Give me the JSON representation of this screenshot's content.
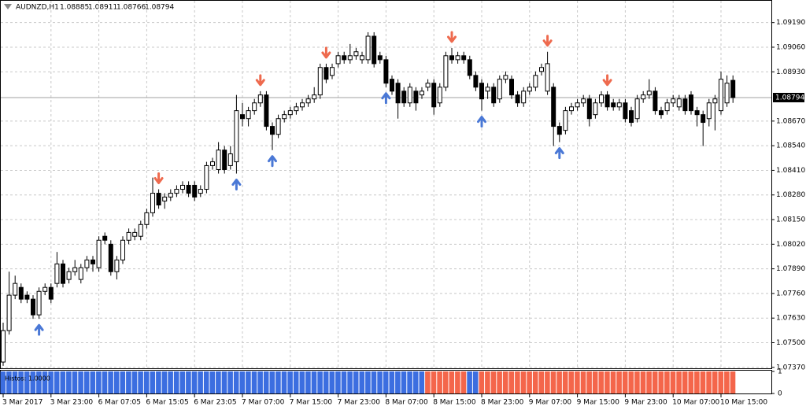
{
  "chart_data": {
    "type": "candlestick",
    "symbol": "AUDNZD,H1",
    "open": [
      1.07398,
      1.07564,
      1.07751,
      1.07792,
      1.07751,
      1.0773,
      1.07647,
      1.07771,
      1.07792,
      1.07813,
      1.07916,
      1.07834,
      1.07875,
      1.07834,
      1.07896,
      1.07937,
      1.07896,
      1.08062,
      1.0802,
      1.07875,
      1.07937,
      1.08041,
      1.08062,
      1.08062,
      1.08124,
      1.08186,
      1.08289,
      1.08248,
      1.08269,
      1.08289,
      1.0831,
      1.08331,
      1.08331,
      1.08289,
      1.0831,
      1.08435,
      1.08414,
      1.08517,
      1.08435,
      1.08455,
      1.08704,
      1.08683,
      1.08725,
      1.08766,
      1.08808,
      1.08642,
      1.086,
      1.08683,
      1.08704,
      1.08725,
      1.08745,
      1.08766,
      1.08787,
      1.08808,
      1.08953,
      1.08911,
      1.08973,
      1.09015,
      1.08994,
      1.09015,
      1.08994,
      1.08994,
      1.09118,
      1.09015,
      1.08994,
      1.08891,
      1.0887,
      1.08828,
      1.08766,
      1.08828,
      1.08808,
      1.08849,
      1.0887,
      1.08766,
      1.08849,
      1.09015,
      1.08994,
      1.09015,
      1.08994,
      1.08911,
      1.0887,
      1.08828,
      1.08849,
      1.08787,
      1.08891,
      1.08891,
      1.08808,
      1.08766,
      1.08828,
      1.08849,
      1.08932,
      1.08828,
      1.08849,
      1.08642,
      1.08621,
      1.08725,
      1.08745,
      1.08766,
      1.08787,
      1.08704,
      1.08766,
      1.08808,
      1.08766,
      1.08745,
      1.08766,
      1.08725,
      1.08683,
      1.08787,
      1.08808,
      1.08828,
      1.08725,
      1.08725,
      1.08766,
      1.08745,
      1.08787,
      1.08808,
      1.08725,
      1.08704,
      1.08683,
      1.08766,
      1.08725,
      1.08766,
      1.08885
    ],
    "high": [
      1.07606,
      1.07875,
      1.07854,
      1.07813,
      1.07771,
      1.07751,
      1.07792,
      1.07813,
      1.07813,
      1.07979,
      1.07937,
      1.07896,
      1.07937,
      1.07916,
      1.07958,
      1.07958,
      1.08062,
      1.08082,
      1.08041,
      1.07958,
      1.08062,
      1.08103,
      1.08103,
      1.08144,
      1.08207,
      1.08372,
      1.0831,
      1.08289,
      1.0831,
      1.08331,
      1.08352,
      1.08352,
      1.08352,
      1.08331,
      1.08455,
      1.08476,
      1.08559,
      1.08538,
      1.08538,
      1.08808,
      1.08766,
      1.08745,
      1.08787,
      1.08828,
      1.08828,
      1.08663,
      1.08704,
      1.08725,
      1.08745,
      1.08766,
      1.08787,
      1.08808,
      1.08849,
      1.08973,
      1.08973,
      1.08973,
      1.09036,
      1.09036,
      1.09077,
      1.09056,
      1.09036,
      1.09139,
      1.09139,
      1.09036,
      1.09015,
      1.08911,
      1.08891,
      1.08849,
      1.0887,
      1.08849,
      1.08849,
      1.08891,
      1.08891,
      1.0887,
      1.09036,
      1.09056,
      1.09036,
      1.09036,
      1.09015,
      1.08932,
      1.08891,
      1.0887,
      1.0887,
      1.08911,
      1.08932,
      1.08911,
      1.08828,
      1.08849,
      1.0887,
      1.08932,
      1.08973,
      1.09036,
      1.0887,
      1.08663,
      1.08745,
      1.08766,
      1.08787,
      1.08808,
      1.08808,
      1.08787,
      1.08828,
      1.08828,
      1.08787,
      1.08787,
      1.08787,
      1.08745,
      1.08808,
      1.08828,
      1.08891,
      1.08849,
      1.08745,
      1.08787,
      1.08808,
      1.08808,
      1.08808,
      1.08828,
      1.08745,
      1.08725,
      1.08787,
      1.08808,
      1.08932,
      1.08911,
      1.08911
    ],
    "low": [
      1.07378,
      1.07543,
      1.0773,
      1.07709,
      1.07709,
      1.07626,
      1.07626,
      1.07751,
      1.07709,
      1.07792,
      1.07792,
      1.07813,
      1.07854,
      1.07813,
      1.07875,
      1.07875,
      1.07875,
      1.0802,
      1.07854,
      1.07834,
      1.07916,
      1.0802,
      1.08041,
      1.08041,
      1.08103,
      1.08165,
      1.08207,
      1.08207,
      1.08248,
      1.08269,
      1.08289,
      1.08269,
      1.08248,
      1.08269,
      1.08289,
      1.08414,
      1.08393,
      1.08393,
      1.08414,
      1.08393,
      1.08642,
      1.08642,
      1.08704,
      1.08745,
      1.08621,
      1.08517,
      1.0858,
      1.08663,
      1.08683,
      1.08704,
      1.08725,
      1.08745,
      1.08766,
      1.08787,
      1.0887,
      1.08891,
      1.08953,
      1.08973,
      1.08973,
      1.08994,
      1.08973,
      1.08973,
      1.08953,
      1.08973,
      1.08849,
      1.08808,
      1.08683,
      1.08745,
      1.08745,
      1.08725,
      1.08787,
      1.08828,
      1.08704,
      1.08745,
      1.08828,
      1.08973,
      1.08973,
      1.08973,
      1.08891,
      1.08828,
      1.08725,
      1.08787,
      1.08745,
      1.08766,
      1.0887,
      1.08787,
      1.08745,
      1.08745,
      1.08808,
      1.08828,
      1.08911,
      1.08808,
      1.08538,
      1.08559,
      1.086,
      1.08704,
      1.08725,
      1.08745,
      1.08642,
      1.08683,
      1.08745,
      1.08725,
      1.08725,
      1.08725,
      1.08663,
      1.08642,
      1.08663,
      1.08766,
      1.08787,
      1.08704,
      1.08683,
      1.08704,
      1.08745,
      1.08725,
      1.08704,
      1.08704,
      1.08642,
      1.08538,
      1.08642,
      1.08621,
      1.08704,
      1.08745,
      1.08766
    ],
    "close": [
      1.07564,
      1.07751,
      1.07813,
      1.0773,
      1.0773,
      1.07647,
      1.07771,
      1.07792,
      1.0773,
      1.07916,
      1.07813,
      1.07875,
      1.07896,
      1.07896,
      1.07937,
      1.07916,
      1.08041,
      1.08041,
      1.07875,
      1.07937,
      1.08041,
      1.08082,
      1.08082,
      1.08124,
      1.08186,
      1.08289,
      1.08227,
      1.08269,
      1.08289,
      1.0831,
      1.08331,
      1.08289,
      1.08269,
      1.0831,
      1.08435,
      1.08455,
      1.08517,
      1.08414,
      1.08497,
      1.08725,
      1.08683,
      1.08725,
      1.08766,
      1.08808,
      1.08642,
      1.086,
      1.08683,
      1.08704,
      1.08725,
      1.08745,
      1.08766,
      1.08787,
      1.08808,
      1.08953,
      1.08891,
      1.08953,
      1.09015,
      1.08994,
      1.09015,
      1.09036,
      1.09015,
      1.09118,
      1.08973,
      1.08994,
      1.0887,
      1.08828,
      1.08766,
      1.08766,
      1.08849,
      1.08766,
      1.08828,
      1.0887,
      1.08745,
      1.08849,
      1.09015,
      1.08994,
      1.09015,
      1.08994,
      1.08911,
      1.08849,
      1.08787,
      1.08849,
      1.08766,
      1.08891,
      1.08911,
      1.08808,
      1.08766,
      1.08828,
      1.08849,
      1.08911,
      1.08953,
      1.08973,
      1.08642,
      1.086,
      1.08725,
      1.08745,
      1.08766,
      1.08787,
      1.08683,
      1.08766,
      1.08808,
      1.08745,
      1.08745,
      1.08766,
      1.08683,
      1.08663,
      1.08787,
      1.08808,
      1.08828,
      1.08725,
      1.08704,
      1.08766,
      1.08787,
      1.08787,
      1.08725,
      1.08725,
      1.08704,
      1.08663,
      1.08766,
      1.08787,
      1.08891,
      1.0887,
      1.08794
    ],
    "bull_color": "#ffffff",
    "bear_color": "#000000",
    "ylim": [
      1.07365,
      1.09305
    ],
    "yticks": [
      {
        "value": 1.0919,
        "label": "1.09190"
      },
      {
        "value": 1.0906,
        "label": "1.09060"
      },
      {
        "value": 1.0893,
        "label": "1.08930"
      },
      {
        "value": 1.0867,
        "label": "1.08670"
      },
      {
        "value": 1.0854,
        "label": "1.08540"
      },
      {
        "value": 1.0841,
        "label": "1.08410"
      },
      {
        "value": 1.0828,
        "label": "1.08280"
      },
      {
        "value": 1.0815,
        "label": "1.08150"
      },
      {
        "value": 1.0802,
        "label": "1.08020"
      },
      {
        "value": 1.0789,
        "label": "1.07890"
      },
      {
        "value": 1.0776,
        "label": "1.07760"
      },
      {
        "value": 1.0763,
        "label": "1.07630"
      },
      {
        "value": 1.075,
        "label": "1.07500"
      },
      {
        "value": 1.0737,
        "label": "1.07370"
      }
    ],
    "xticks": [
      {
        "value": 0,
        "label": "3 Mar 2017"
      },
      {
        "value": 8,
        "label": "3 Mar 23:00"
      },
      {
        "value": 16,
        "label": "6 Mar 07:05"
      },
      {
        "value": 24,
        "label": "6 Mar 15:05"
      },
      {
        "value": 32,
        "label": "6 Mar 23:05"
      },
      {
        "value": 40,
        "label": "7 Mar 07:00"
      },
      {
        "value": 48,
        "label": "7 Mar 15:00"
      },
      {
        "value": 56,
        "label": "7 Mar 23:00"
      },
      {
        "value": 64,
        "label": "8 Mar 07:00"
      },
      {
        "value": 72,
        "label": "8 Mar 15:00"
      },
      {
        "value": 80,
        "label": "8 Mar 23:00"
      },
      {
        "value": 88,
        "label": "9 Mar 07:00"
      },
      {
        "value": 96,
        "label": "9 Mar 15:00"
      },
      {
        "value": 104,
        "label": "9 Mar 23:00"
      },
      {
        "value": 112,
        "label": "10 Mar 07:00"
      },
      {
        "value": 120,
        "label": "10 Mar 15:00"
      }
    ],
    "grid": true,
    "signals_up": [
      6,
      39,
      45,
      64,
      80,
      93
    ],
    "up_arrow_color": "#4a78d6",
    "signals_down": [
      26,
      43,
      54,
      75,
      91,
      101
    ],
    "down_arrow_color": "#ee6a4e",
    "indicator": {
      "type": "histogram",
      "label": "Histos: 1.0000",
      "ylim": [
        0,
        1
      ],
      "yticks": [
        1,
        0
      ],
      "values": [
        1,
        1,
        1,
        1,
        1,
        1,
        1,
        1,
        1,
        1,
        1,
        1,
        1,
        1,
        1,
        1,
        1,
        1,
        1,
        1,
        1,
        1,
        1,
        1,
        1,
        1,
        1,
        1,
        1,
        1,
        1,
        1,
        1,
        1,
        1,
        1,
        1,
        1,
        1,
        1,
        1,
        1,
        1,
        1,
        1,
        1,
        1,
        1,
        1,
        1,
        1,
        1,
        1,
        1,
        1,
        1,
        1,
        1,
        1,
        1,
        1,
        1,
        1,
        1,
        1,
        1,
        1,
        1,
        1,
        1,
        1,
        1,
        1,
        1,
        1,
        1,
        1,
        1,
        1,
        1,
        1,
        1,
        1,
        1,
        1,
        1,
        1,
        1,
        1,
        1,
        1,
        1,
        1,
        1,
        1,
        1,
        1,
        1,
        1,
        1,
        1,
        1,
        1,
        1,
        1,
        1,
        1,
        1,
        1,
        1,
        1,
        1,
        1,
        1,
        1,
        1,
        1,
        1,
        1,
        1,
        1,
        1,
        1
      ],
      "colors": [
        "#3c6ee0",
        "#3c6ee0",
        "#3c6ee0",
        "#3c6ee0",
        "#3c6ee0",
        "#3c6ee0",
        "#3c6ee0",
        "#3c6ee0",
        "#3c6ee0",
        "#3c6ee0",
        "#3c6ee0",
        "#3c6ee0",
        "#3c6ee0",
        "#3c6ee0",
        "#3c6ee0",
        "#3c6ee0",
        "#3c6ee0",
        "#3c6ee0",
        "#3c6ee0",
        "#3c6ee0",
        "#3c6ee0",
        "#3c6ee0",
        "#3c6ee0",
        "#3c6ee0",
        "#3c6ee0",
        "#3c6ee0",
        "#3c6ee0",
        "#3c6ee0",
        "#3c6ee0",
        "#3c6ee0",
        "#3c6ee0",
        "#3c6ee0",
        "#3c6ee0",
        "#3c6ee0",
        "#3c6ee0",
        "#3c6ee0",
        "#3c6ee0",
        "#3c6ee0",
        "#3c6ee0",
        "#3c6ee0",
        "#3c6ee0",
        "#3c6ee0",
        "#3c6ee0",
        "#3c6ee0",
        "#3c6ee0",
        "#3c6ee0",
        "#3c6ee0",
        "#3c6ee0",
        "#3c6ee0",
        "#3c6ee0",
        "#3c6ee0",
        "#3c6ee0",
        "#3c6ee0",
        "#3c6ee0",
        "#3c6ee0",
        "#3c6ee0",
        "#3c6ee0",
        "#3c6ee0",
        "#3c6ee0",
        "#3c6ee0",
        "#3c6ee0",
        "#3c6ee0",
        "#3c6ee0",
        "#3c6ee0",
        "#3c6ee0",
        "#3c6ee0",
        "#3c6ee0",
        "#3c6ee0",
        "#3c6ee0",
        "#3c6ee0",
        "#3c6ee0",
        "#f4664b",
        "#f4664b",
        "#f4664b",
        "#f4664b",
        "#f4664b",
        "#f4664b",
        "#f4664b",
        "#3c6ee0",
        "#3c6ee0",
        "#f4664b",
        "#f4664b",
        "#f4664b",
        "#f4664b",
        "#f4664b",
        "#f4664b",
        "#f4664b",
        "#f4664b",
        "#f4664b",
        "#f4664b",
        "#f4664b",
        "#f4664b",
        "#f4664b",
        "#f4664b",
        "#f4664b",
        "#f4664b",
        "#f4664b",
        "#f4664b",
        "#f4664b",
        "#f4664b",
        "#f4664b",
        "#f4664b",
        "#f4664b",
        "#f4664b",
        "#f4664b",
        "#f4664b",
        "#f4664b",
        "#f4664b",
        "#f4664b",
        "#f4664b",
        "#f4664b",
        "#f4664b",
        "#f4664b",
        "#f4664b",
        "#f4664b",
        "#f4664b",
        "#f4664b",
        "#f4664b",
        "#f4664b",
        "#f4664b",
        "#f4664b",
        "#f4664b",
        "#f4664b"
      ]
    }
  }
}
